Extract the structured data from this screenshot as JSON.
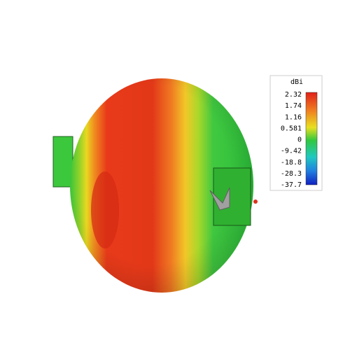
{
  "colorbar": {
    "unit": "dBi",
    "labels": [
      2.32,
      1.74,
      1.16,
      0.581,
      0,
      -9.42,
      -18.8,
      -28.3,
      -37.7
    ]
  }
}
